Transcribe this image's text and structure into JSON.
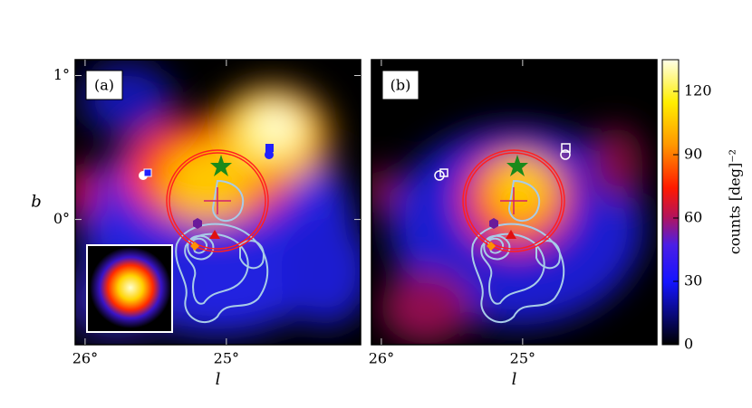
{
  "chart_data": [
    {
      "type": "heatmap",
      "panel_label": "(a)",
      "xlabel": "l",
      "ylabel": "b",
      "xlim": [
        26.07,
        24.05
      ],
      "ylim": [
        -0.87,
        1.11
      ],
      "xticks": [
        {
          "value": 26,
          "label": "26°"
        },
        {
          "value": 25,
          "label": "25°"
        }
      ],
      "yticks": [
        {
          "value": 1,
          "label": "1°"
        },
        {
          "value": 0,
          "label": "0°"
        }
      ]
    },
    {
      "type": "heatmap",
      "panel_label": "(b)",
      "xlabel": "l",
      "xlim": [
        26.07,
        24.05
      ],
      "ylim": [
        -0.87,
        1.11
      ],
      "xticks": [
        {
          "value": 26,
          "label": "26°"
        },
        {
          "value": 25,
          "label": "25°"
        }
      ],
      "colorbar_label": "counts [deg]⁻²",
      "clim": [
        0,
        135
      ],
      "cticks": [
        0,
        30,
        60,
        90,
        120
      ]
    }
  ]
}
